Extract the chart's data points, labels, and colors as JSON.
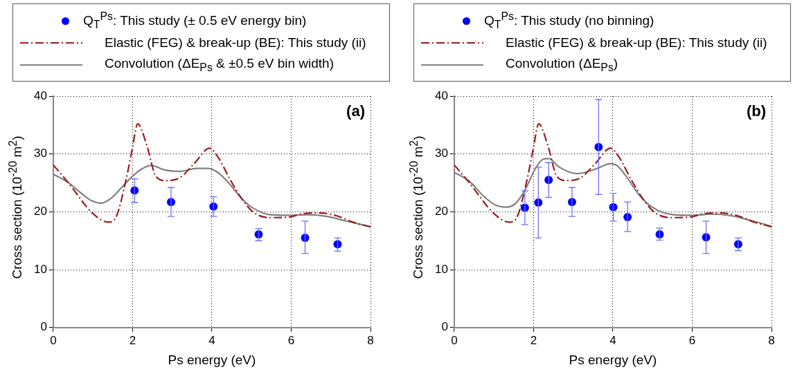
{
  "chart_data": [
    {
      "type": "scatter",
      "xlabel": "Ps energy (eV)",
      "ylabel": "Cross section (10$^{-20}$ m$^{2}$)",
      "xlim": [
        0,
        8
      ],
      "ylim": [
        0,
        40
      ],
      "xticks": [
        0,
        2,
        4,
        6,
        8
      ],
      "yticks": [
        0,
        10,
        20,
        30,
        40
      ],
      "grid": true,
      "legend": "top",
      "annotations": [
        "(a)"
      ],
      "series": [
        {
          "name": "Q$_{T}$$^{Ps}$: This study (± 0.5 eV energy bin)",
          "type": "scatter",
          "marker": "circle",
          "color": "#0000ff",
          "x": [
            2.05,
            2.97,
            4.04,
            5.18,
            6.35,
            7.17
          ],
          "values": [
            23.7,
            21.7,
            20.9,
            16.1,
            15.5,
            14.4
          ],
          "errors": [
            [
              21.6,
              25.7
            ],
            [
              19.2,
              24.2
            ],
            [
              19.2,
              22.6
            ],
            [
              15.0,
              17.1
            ],
            [
              12.8,
              18.4
            ],
            [
              13.2,
              15.5
            ]
          ]
        },
        {
          "name": "Elastic (FEG) & break-up (BE): This study (ii)",
          "type": "line",
          "line_style": "dashed",
          "color": "#9b1c1c",
          "x": [
            0,
            0.37,
            1.0,
            1.39,
            1.57,
            1.84,
            1.99,
            2.13,
            2.35,
            2.59,
            2.83,
            3.19,
            3.55,
            3.94,
            4.15,
            4.45,
            4.75,
            5.05,
            5.47,
            5.95,
            6.31,
            6.73,
            7.15,
            7.57,
            8
          ],
          "values": [
            28.1,
            25.1,
            19.7,
            18.2,
            18.9,
            25.7,
            30.8,
            35.2,
            31.7,
            26.1,
            25.4,
            25.9,
            28.3,
            31.0,
            29.5,
            25.7,
            22.3,
            19.9,
            19.0,
            19.1,
            19.7,
            19.8,
            19.3,
            18.2,
            17.4
          ]
        },
        {
          "name": "Convolution (ΔE$_{Ps}$ & ±0.5 eV bin width)",
          "type": "line",
          "line_style": "solid",
          "color": "#808080",
          "x": [
            0,
            0.37,
            0.67,
            0.97,
            1.21,
            1.45,
            1.75,
            1.99,
            2.23,
            2.47,
            2.83,
            3.19,
            3.61,
            3.91,
            4.15,
            4.45,
            4.75,
            5.05,
            5.47,
            5.95,
            6.43,
            6.91,
            7.39,
            8
          ],
          "values": [
            26.5,
            25.1,
            23.4,
            21.9,
            21.5,
            22.3,
            24.4,
            26.1,
            27.4,
            28.0,
            27.2,
            27.0,
            27.5,
            27.5,
            26.8,
            24.8,
            22.3,
            20.6,
            19.5,
            19.4,
            19.5,
            19.2,
            18.4,
            17.4
          ]
        }
      ]
    },
    {
      "type": "scatter",
      "xlabel": "Ps energy (eV)",
      "ylabel": "Cross section (10$^{-20}$ m$^{2}$)",
      "xlim": [
        0,
        8
      ],
      "ylim": [
        0,
        40
      ],
      "xticks": [
        0,
        2,
        4,
        6,
        8
      ],
      "yticks": [
        0,
        10,
        20,
        30,
        40
      ],
      "grid": true,
      "legend": "top",
      "annotations": [
        "(b)"
      ],
      "series": [
        {
          "name": "Q$_{T}$$^{Ps}$: This study (no binning)",
          "type": "scatter",
          "marker": "circle",
          "color": "#0000ff",
          "x": [
            1.78,
            2.12,
            2.38,
            2.97,
            3.64,
            4.01,
            4.37,
            5.18,
            6.35,
            7.16
          ],
          "values": [
            20.7,
            21.6,
            25.5,
            21.7,
            31.2,
            20.8,
            19.1,
            16.1,
            15.6,
            14.4
          ],
          "errors": [
            [
              17.8,
              23.6
            ],
            [
              15.5,
              27.7
            ],
            [
              22.5,
              28.5
            ],
            [
              19.2,
              24.2
            ],
            [
              23.0,
              39.4
            ],
            [
              18.4,
              23.2
            ],
            [
              16.6,
              21.7
            ],
            [
              15.1,
              17.2
            ],
            [
              12.8,
              18.4
            ],
            [
              13.3,
              15.5
            ]
          ]
        },
        {
          "name": "Elastic (FEG) & break-up (BE): This study (ii)",
          "type": "line",
          "line_style": "dashed",
          "color": "#9b1c1c",
          "x": [
            0,
            0.37,
            1.0,
            1.39,
            1.57,
            1.84,
            1.99,
            2.13,
            2.35,
            2.59,
            2.83,
            3.19,
            3.55,
            3.94,
            4.15,
            4.45,
            4.75,
            5.05,
            5.47,
            5.95,
            6.31,
            6.73,
            7.15,
            7.57,
            8
          ],
          "values": [
            28.1,
            25.1,
            19.7,
            18.2,
            18.9,
            25.7,
            30.8,
            35.2,
            31.7,
            26.1,
            25.4,
            25.9,
            28.3,
            31.0,
            29.5,
            25.7,
            22.3,
            19.9,
            19.0,
            19.1,
            19.7,
            19.8,
            19.3,
            18.2,
            17.4
          ]
        },
        {
          "name": "Convolution (ΔE$_{Ps}$)",
          "type": "line",
          "line_style": "solid",
          "color": "#808080",
          "x": [
            0,
            0.38,
            0.74,
            1.03,
            1.3,
            1.54,
            1.8,
            2.04,
            2.24,
            2.39,
            2.63,
            3.1,
            3.57,
            3.93,
            4.1,
            4.34,
            4.64,
            4.99,
            5.52,
            6.0,
            6.52,
            6.99,
            7.53,
            8
          ],
          "values": [
            26.8,
            25.3,
            22.7,
            21.2,
            20.8,
            21.4,
            24.0,
            27.4,
            29.1,
            29.2,
            27.8,
            26.6,
            27.4,
            28.3,
            28.0,
            26.1,
            23.1,
            20.8,
            19.5,
            19.4,
            19.6,
            19.3,
            18.4,
            17.5
          ]
        }
      ]
    }
  ]
}
